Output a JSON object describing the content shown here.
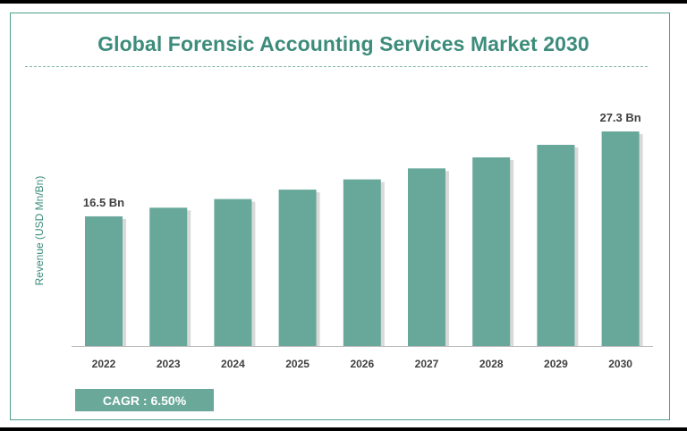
{
  "title": "Global Forensic Accounting Services Market 2030",
  "cagr_label": "CAGR : 6.50%",
  "colors": {
    "bar": "#68a89a",
    "bar_shadow": "#d9d9d9",
    "accent": "#3d8c7b",
    "axis": "#bdbdbd"
  },
  "chart_data": {
    "type": "bar",
    "title": "Global Forensic Accounting Services Market 2030",
    "ylabel": "Revenue (USD Mn/Bn)",
    "xlabel": "",
    "categories": [
      "2022",
      "2023",
      "2024",
      "2025",
      "2026",
      "2027",
      "2028",
      "2029",
      "2030"
    ],
    "values": [
      16.5,
      17.6,
      18.7,
      19.9,
      21.2,
      22.6,
      24.0,
      25.6,
      27.3
    ],
    "data_labels": [
      {
        "index": 0,
        "text": "16.5 Bn"
      },
      {
        "index": 8,
        "text": "27.3 Bn"
      }
    ],
    "ylim": [
      0,
      27.3
    ],
    "grid": false,
    "legend": "none"
  }
}
